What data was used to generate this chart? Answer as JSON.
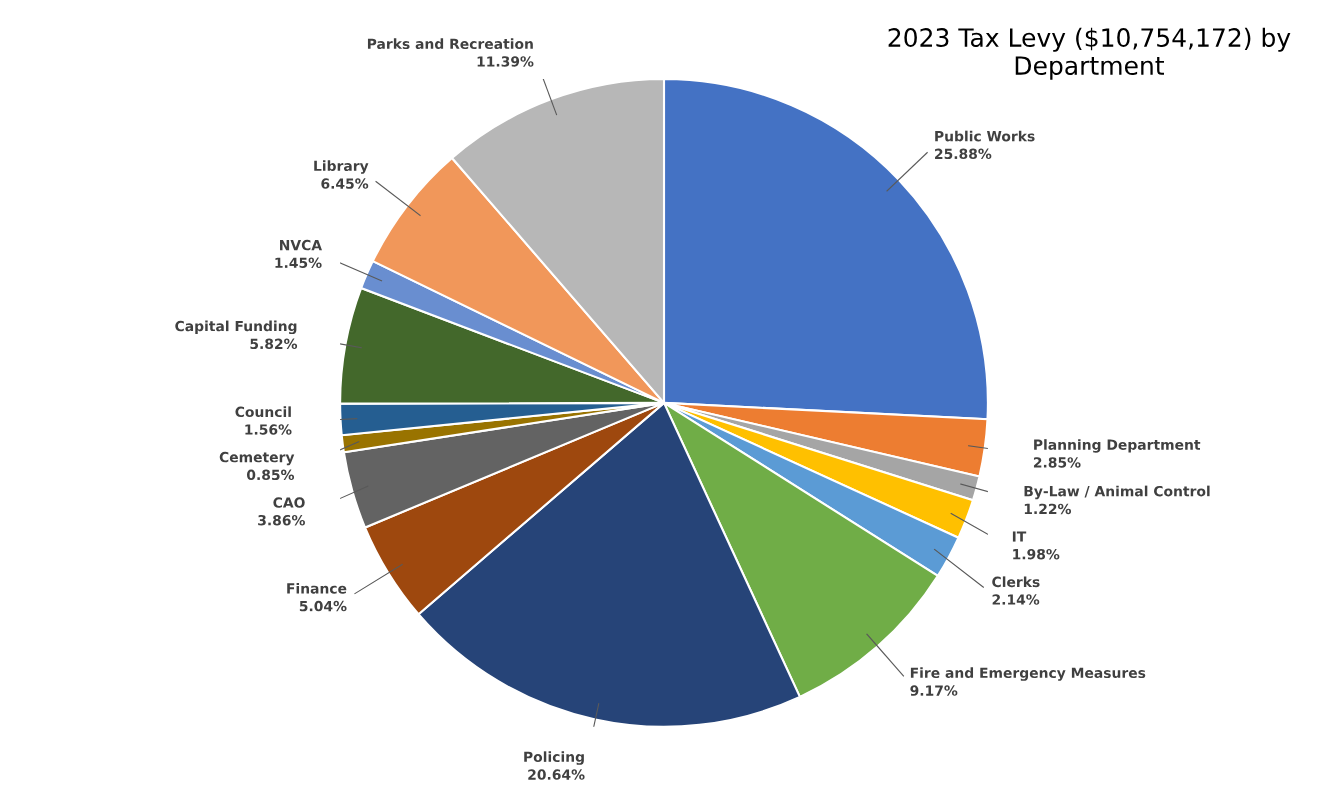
{
  "chart_data": {
    "type": "pie",
    "title": "2023 Tax Levy ($10,754,172) by\nDepartment",
    "categories": [
      "Public Works",
      "Planning Department",
      "By-Law / Animal Control",
      "IT",
      "Clerks",
      "Fire and Emergency Measures",
      "Policing",
      "Finance",
      "CAO",
      "Cemetery",
      "Council",
      "Capital Funding",
      "NVCA",
      "Library",
      "Parks and Recreation"
    ],
    "values": [
      25.88,
      2.85,
      1.22,
      1.98,
      2.14,
      9.17,
      20.64,
      5.04,
      3.86,
      0.85,
      1.56,
      5.82,
      1.45,
      6.45,
      11.39
    ],
    "value_labels": [
      "25.88%",
      "2.85%",
      "1.22%",
      "1.98%",
      "2.14%",
      "9.17%",
      "20.64%",
      "5.04%",
      "3.86%",
      "0.85%",
      "1.56%",
      "5.82%",
      "1.45%",
      "6.45%",
      "11.39%"
    ],
    "colors": [
      "#4472c4",
      "#ed7d31",
      "#a5a5a5",
      "#ffc000",
      "#5b9bd5",
      "#70ad47",
      "#264478",
      "#9e480e",
      "#636363",
      "#997300",
      "#255e91",
      "#43682b",
      "#698ed0",
      "#f1975a",
      "#b7b7b7"
    ],
    "legend": false
  }
}
